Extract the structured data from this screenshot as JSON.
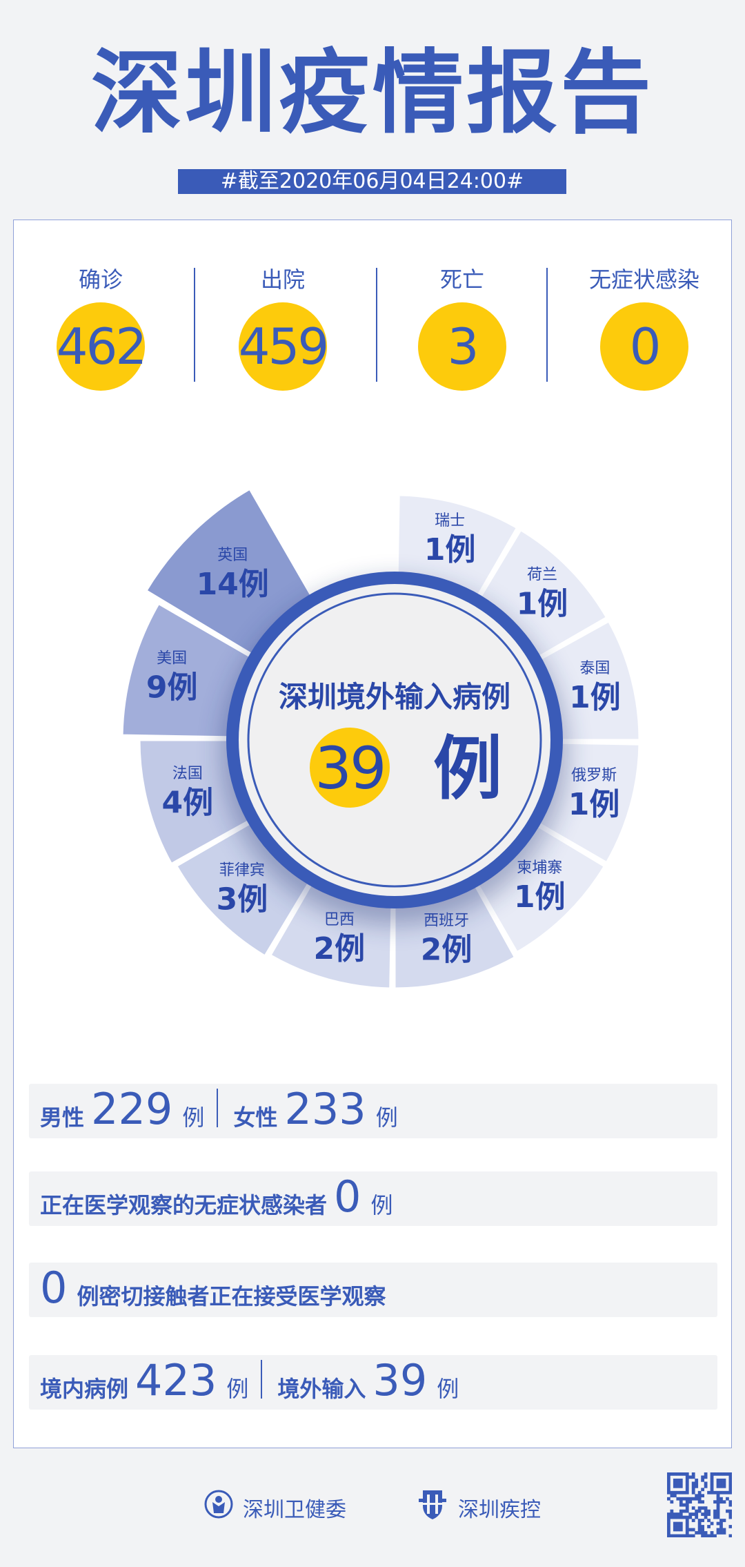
{
  "header": {
    "title": "深圳疫情报告",
    "date": "#截至2020年06月04日24:00#"
  },
  "colors": {
    "primary": "#3a5bb8",
    "accent_yellow": "#fdcb0c",
    "background": "#f2f3f5"
  },
  "stats": [
    {
      "label": "确诊",
      "value": "462"
    },
    {
      "label": "出院",
      "value": "459"
    },
    {
      "label": "死亡",
      "value": "3"
    },
    {
      "label": "无症状感染",
      "value": "0"
    }
  ],
  "center": {
    "title": "深圳境外输入病例",
    "value": "39",
    "unit": "例"
  },
  "chart_data": {
    "type": "pie",
    "unit": "例",
    "categories": [
      "瑞士",
      "荷兰",
      "泰国",
      "俄罗斯",
      "柬埔寨",
      "西班牙",
      "巴西",
      "菲律宾",
      "法国",
      "美国",
      "英国"
    ],
    "values": [
      1,
      1,
      1,
      1,
      1,
      2,
      2,
      3,
      4,
      9,
      14
    ],
    "total": 39
  },
  "rows": {
    "gender": {
      "male_label": "男性",
      "male_value": "229",
      "female_label": "女性",
      "female_value": "233",
      "unit": "例"
    },
    "asymptomatic": {
      "label": "正在医学观察的无症状感染者",
      "value": "0",
      "unit": "例"
    },
    "contacts": {
      "value": "0",
      "label": "例密切接触者正在接受医学观察"
    },
    "origin": {
      "local_label": "境内病例",
      "local_value": "423",
      "imported_label": "境外输入",
      "imported_value": "39",
      "unit": "例"
    }
  },
  "footer": {
    "org1": "深圳卫健委",
    "org2": "深圳疾控",
    "icons": [
      "health-commission-logo-icon",
      "cdc-logo-icon",
      "qr-code-icon"
    ]
  }
}
